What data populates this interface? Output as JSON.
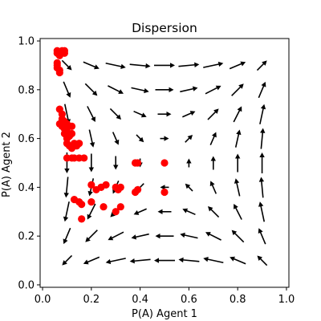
{
  "chart_data": {
    "type": "scatter",
    "title": "Dispersion",
    "xlabel": "P(A) Agent 1",
    "ylabel": "P(A) Agent 2",
    "xlim": [
      -0.01,
      1.01
    ],
    "ylim": [
      -0.01,
      1.01
    ],
    "grid": false,
    "xticks": [
      "0.0",
      "0.2",
      "0.4",
      "0.6",
      "0.8",
      "1.0"
    ],
    "yticks": [
      "0.0",
      "0.2",
      "0.4",
      "0.6",
      "0.8",
      "1.0"
    ],
    "xtick_values": [
      0,
      0.2,
      0.4,
      0.6,
      0.8,
      1.0
    ],
    "ytick_values": [
      0,
      0.2,
      0.4,
      0.6,
      0.8,
      1.0
    ],
    "points_color": "#ff0000",
    "arrow_color": "#000000",
    "points": [
      [
        0.06,
        0.96
      ],
      [
        0.07,
        0.95
      ],
      [
        0.08,
        0.96
      ],
      [
        0.09,
        0.95
      ],
      [
        0.09,
        0.96
      ],
      [
        0.06,
        0.95
      ],
      [
        0.07,
        0.94
      ],
      [
        0.06,
        0.91
      ],
      [
        0.06,
        0.89
      ],
      [
        0.07,
        0.88
      ],
      [
        0.07,
        0.87
      ],
      [
        0.06,
        0.9
      ],
      [
        0.07,
        0.72
      ],
      [
        0.08,
        0.7
      ],
      [
        0.08,
        0.68
      ],
      [
        0.07,
        0.66
      ],
      [
        0.09,
        0.67
      ],
      [
        0.08,
        0.65
      ],
      [
        0.1,
        0.66
      ],
      [
        0.09,
        0.64
      ],
      [
        0.11,
        0.65
      ],
      [
        0.12,
        0.65
      ],
      [
        0.1,
        0.63
      ],
      [
        0.09,
        0.62
      ],
      [
        0.11,
        0.61
      ],
      [
        0.1,
        0.6
      ],
      [
        0.12,
        0.62
      ],
      [
        0.1,
        0.58
      ],
      [
        0.11,
        0.57
      ],
      [
        0.13,
        0.58
      ],
      [
        0.12,
        0.56
      ],
      [
        0.14,
        0.57
      ],
      [
        0.15,
        0.58
      ],
      [
        0.1,
        0.52
      ],
      [
        0.12,
        0.52
      ],
      [
        0.13,
        0.52
      ],
      [
        0.15,
        0.52
      ],
      [
        0.17,
        0.52
      ],
      [
        0.38,
        0.5
      ],
      [
        0.39,
        0.5
      ],
      [
        0.5,
        0.5
      ],
      [
        0.2,
        0.41
      ],
      [
        0.24,
        0.4
      ],
      [
        0.26,
        0.41
      ],
      [
        0.22,
        0.39
      ],
      [
        0.3,
        0.4
      ],
      [
        0.31,
        0.39
      ],
      [
        0.32,
        0.4
      ],
      [
        0.38,
        0.38
      ],
      [
        0.39,
        0.39
      ],
      [
        0.5,
        0.38
      ],
      [
        0.13,
        0.35
      ],
      [
        0.15,
        0.34
      ],
      [
        0.2,
        0.34
      ],
      [
        0.16,
        0.33
      ],
      [
        0.25,
        0.32
      ],
      [
        0.32,
        0.32
      ],
      [
        0.3,
        0.3
      ],
      [
        0.16,
        0.27
      ]
    ],
    "vector_field": {
      "x": [
        0.1,
        0.2,
        0.3,
        0.4,
        0.5,
        0.6,
        0.7,
        0.8,
        0.9
      ],
      "y": [
        0.1,
        0.2,
        0.3,
        0.4,
        0.5,
        0.6,
        0.7,
        0.8,
        0.9
      ],
      "units": "data"
    }
  }
}
